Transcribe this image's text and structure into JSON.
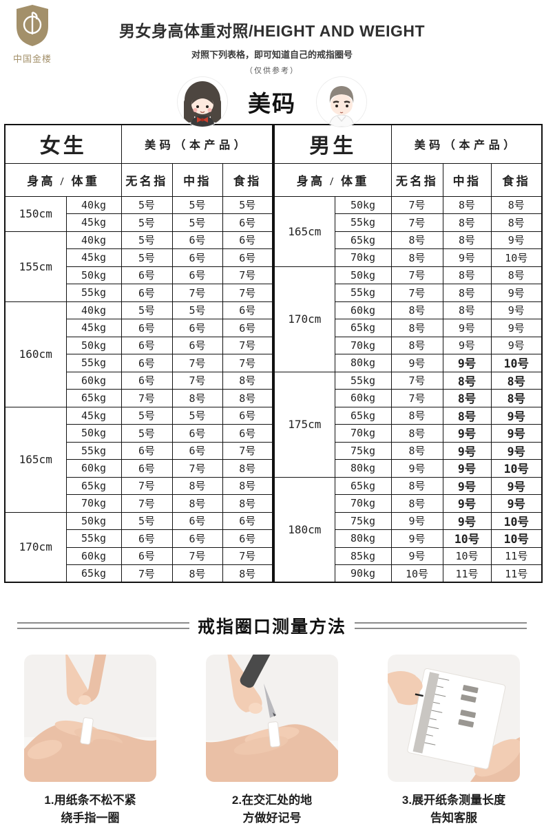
{
  "brand": {
    "name": "中国金楼"
  },
  "header": {
    "title": "男女身高体重对照/HEIGHT AND WEIGHT",
    "subtitle": "对照下列表格，即可知道自己的戒指圈号",
    "note": "（仅供参考）",
    "badge": "美码"
  },
  "colors": {
    "accent_gold": "#a3906a",
    "stripe_gray": "#eaeaea",
    "highlight_pink": "#eed9d7",
    "highlight_warm": "#f1e8e1",
    "border_black": "#111111"
  },
  "size_table": {
    "female": {
      "gender": "女生",
      "size_header": "美码（本产品）",
      "col_headers": [
        "身高 / 体重",
        "无名指",
        "中指",
        "食指"
      ],
      "groups": [
        {
          "height": "150cm",
          "rows": [
            {
              "w": "40kg",
              "s": [
                "5号",
                "5号",
                "5号"
              ]
            },
            {
              "w": "45kg",
              "s": [
                "5号",
                "5号",
                "6号"
              ]
            }
          ]
        },
        {
          "height": "155cm",
          "rows": [
            {
              "w": "40kg",
              "s": [
                "5号",
                "6号",
                "6号"
              ]
            },
            {
              "w": "45kg",
              "s": [
                "5号",
                "6号",
                "6号"
              ]
            },
            {
              "w": "50kg",
              "s": [
                "6号",
                "6号",
                "7号"
              ]
            },
            {
              "w": "55kg",
              "s": [
                "6号",
                "7号",
                "7号"
              ]
            }
          ]
        },
        {
          "height": "160cm",
          "rows": [
            {
              "w": "40kg",
              "s": [
                "5号",
                "5号",
                "6号"
              ],
              "pink_s": [
                2
              ]
            },
            {
              "w": "45kg",
              "s": [
                "6号",
                "6号",
                "6号"
              ]
            },
            {
              "w": "50kg",
              "s": [
                "6号",
                "6号",
                "7号"
              ],
              "pink_w": true,
              "pink_s": [
                2
              ]
            },
            {
              "w": "55kg",
              "s": [
                "6号",
                "7号",
                "7号"
              ]
            },
            {
              "w": "60kg",
              "s": [
                "6号",
                "7号",
                "8号"
              ]
            },
            {
              "w": "65kg",
              "s": [
                "7号",
                "8号",
                "8号"
              ]
            }
          ]
        },
        {
          "height": "165cm",
          "rows": [
            {
              "w": "45kg",
              "s": [
                "5号",
                "5号",
                "6号"
              ]
            },
            {
              "w": "50kg",
              "s": [
                "5号",
                "6号",
                "6号"
              ]
            },
            {
              "w": "55kg",
              "s": [
                "6号",
                "6号",
                "7号"
              ]
            },
            {
              "w": "60kg",
              "s": [
                "6号",
                "7号",
                "8号"
              ]
            },
            {
              "w": "65kg",
              "s": [
                "7号",
                "8号",
                "8号"
              ]
            },
            {
              "w": "70kg",
              "s": [
                "7号",
                "8号",
                "8号"
              ]
            }
          ]
        },
        {
          "height": "170cm",
          "rows": [
            {
              "w": "50kg",
              "s": [
                "5号",
                "6号",
                "6号"
              ]
            },
            {
              "w": "55kg",
              "s": [
                "6号",
                "6号",
                "6号"
              ]
            },
            {
              "w": "60kg",
              "s": [
                "6号",
                "7号",
                "7号"
              ]
            },
            {
              "w": "65kg",
              "s": [
                "7号",
                "8号",
                "8号"
              ]
            }
          ]
        }
      ]
    },
    "male": {
      "gender": "男生",
      "size_header": "美码（本产品）",
      "col_headers": [
        "身高 / 体重",
        "无名指",
        "中指",
        "食指"
      ],
      "groups": [
        {
          "height": "165cm",
          "rows": [
            {
              "w": "50kg",
              "s": [
                "7号",
                "8号",
                "8号"
              ]
            },
            {
              "w": "55kg",
              "s": [
                "7号",
                "8号",
                "8号"
              ]
            },
            {
              "w": "65kg",
              "s": [
                "8号",
                "8号",
                "9号"
              ]
            },
            {
              "w": "70kg",
              "s": [
                "8号",
                "9号",
                "10号"
              ]
            }
          ]
        },
        {
          "height": "170cm",
          "rows": [
            {
              "w": "50kg",
              "s": [
                "7号",
                "8号",
                "8号"
              ]
            },
            {
              "w": "55kg",
              "s": [
                "7号",
                "8号",
                "9号"
              ]
            },
            {
              "w": "60kg",
              "s": [
                "8号",
                "8号",
                "9号"
              ],
              "warm_s": [
                0
              ]
            },
            {
              "w": "65kg",
              "s": [
                "8号",
                "9号",
                "9号"
              ]
            },
            {
              "w": "70kg",
              "s": [
                "8号",
                "9号",
                "9号"
              ]
            },
            {
              "w": "80kg",
              "s": [
                "9号",
                "9号",
                "10号"
              ],
              "bold_s": [
                1,
                2
              ]
            }
          ]
        },
        {
          "height": "175cm",
          "rows": [
            {
              "w": "55kg",
              "s": [
                "7号",
                "8号",
                "8号"
              ],
              "bold_s": [
                1,
                2
              ]
            },
            {
              "w": "60kg",
              "s": [
                "7号",
                "8号",
                "8号"
              ],
              "bold_s": [
                1,
                2
              ]
            },
            {
              "w": "65kg",
              "s": [
                "8号",
                "8号",
                "9号"
              ],
              "bold_s": [
                1,
                2
              ]
            },
            {
              "w": "70kg",
              "s": [
                "8号",
                "9号",
                "9号"
              ],
              "bold_s": [
                1,
                2
              ]
            },
            {
              "w": "75kg",
              "s": [
                "8号",
                "9号",
                "9号"
              ],
              "bold_s": [
                1,
                2
              ]
            },
            {
              "w": "80kg",
              "s": [
                "9号",
                "9号",
                "10号"
              ],
              "bold_s": [
                1,
                2
              ]
            }
          ]
        },
        {
          "height": "180cm",
          "rows": [
            {
              "w": "65kg",
              "s": [
                "8号",
                "9号",
                "9号"
              ],
              "bold_s": [
                1,
                2
              ]
            },
            {
              "w": "70kg",
              "s": [
                "8号",
                "9号",
                "9号"
              ],
              "bold_s": [
                1,
                2
              ]
            },
            {
              "w": "75kg",
              "s": [
                "9号",
                "9号",
                "10号"
              ],
              "bold_s": [
                1,
                2
              ]
            },
            {
              "w": "80kg",
              "s": [
                "9号",
                "10号",
                "10号"
              ],
              "bold_s": [
                1,
                2
              ]
            },
            {
              "w": "85kg",
              "s": [
                "9号",
                "10号",
                "11号"
              ]
            },
            {
              "w": "90kg",
              "s": [
                "10号",
                "11号",
                "11号"
              ]
            }
          ]
        }
      ]
    }
  },
  "measure_section": {
    "title": "戒指圈口测量方法",
    "steps": [
      {
        "caption_line1": "1.用纸条不松不紧",
        "caption_line2": "绕手指一圈",
        "illustration": "wrap-paper-strip"
      },
      {
        "caption_line1": "2.在交汇处的地",
        "caption_line2": "方做好记号",
        "illustration": "mark-with-pen"
      },
      {
        "caption_line1": "3.展开纸条测量长度",
        "caption_line2": "告知客服",
        "illustration": "measure-with-ruler"
      }
    ]
  }
}
